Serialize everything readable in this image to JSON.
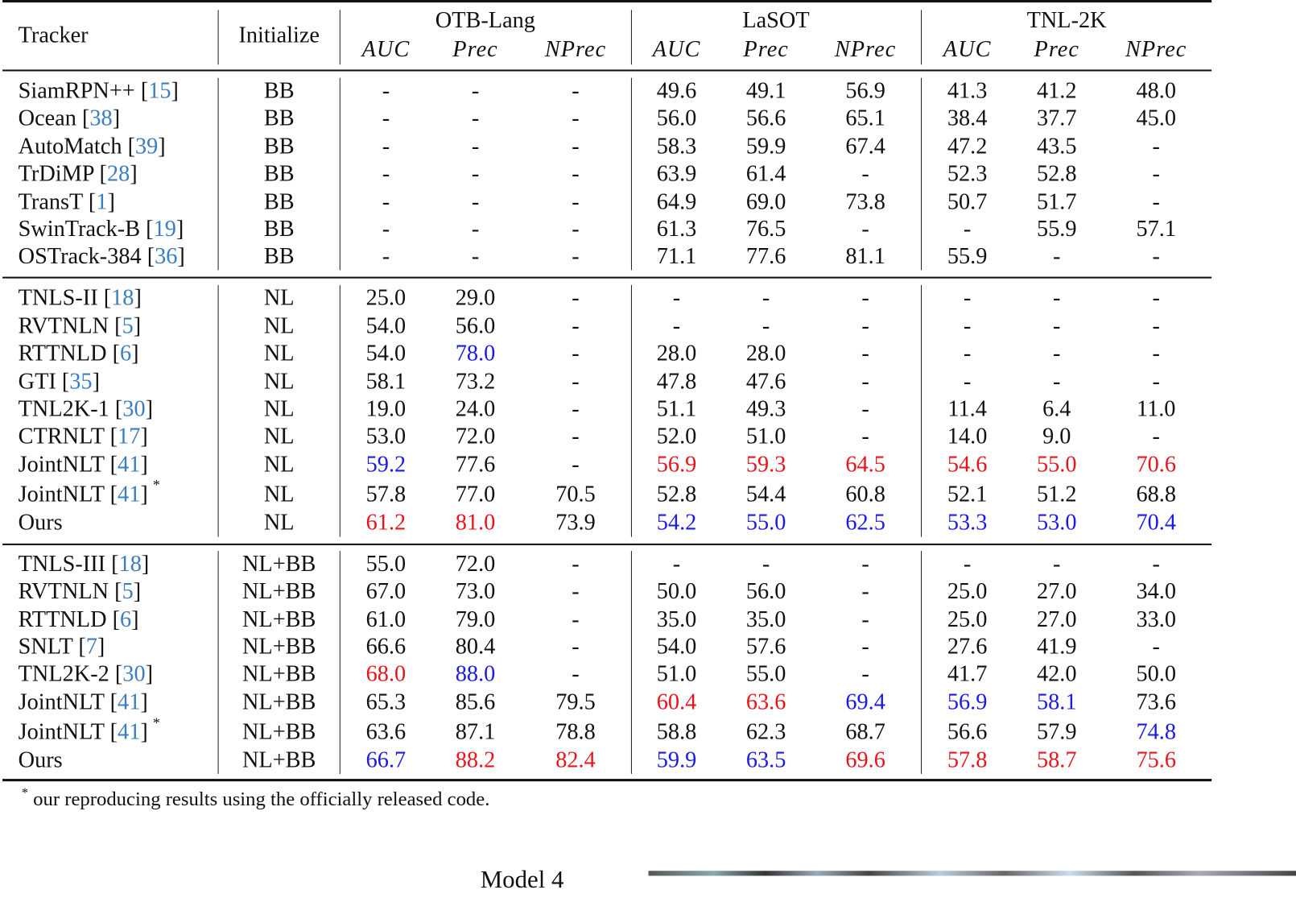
{
  "header": {
    "tracker": "Tracker",
    "initialize": "Initialize",
    "groups": [
      "OTB-Lang",
      "LaSOT",
      "TNL-2K"
    ],
    "metrics": [
      "AUC",
      "Prec",
      "NPrec"
    ]
  },
  "colors": {
    "r": "#e8141b",
    "b": "#1a1ae6",
    "cite": "#3a7ebf"
  },
  "sections": [
    [
      {
        "name": "SiamRPN++",
        "cite": "15",
        "init": "BB",
        "vals": [
          "-",
          "-",
          "-",
          "49.6",
          "49.1",
          "56.9",
          "41.3",
          "41.2",
          "48.0"
        ],
        "hl": [
          "",
          "",
          "",
          "",
          "",
          "",
          "",
          "",
          ""
        ]
      },
      {
        "name": "Ocean",
        "cite": "38",
        "init": "BB",
        "vals": [
          "-",
          "-",
          "-",
          "56.0",
          "56.6",
          "65.1",
          "38.4",
          "37.7",
          "45.0"
        ],
        "hl": [
          "",
          "",
          "",
          "",
          "",
          "",
          "",
          "",
          ""
        ]
      },
      {
        "name": "AutoMatch",
        "cite": "39",
        "init": "BB",
        "vals": [
          "-",
          "-",
          "-",
          "58.3",
          "59.9",
          "67.4",
          "47.2",
          "43.5",
          "-"
        ],
        "hl": [
          "",
          "",
          "",
          "",
          "",
          "",
          "",
          "",
          ""
        ]
      },
      {
        "name": "TrDiMP",
        "cite": "28",
        "init": "BB",
        "vals": [
          "-",
          "-",
          "-",
          "63.9",
          "61.4",
          "-",
          "52.3",
          "52.8",
          "-"
        ],
        "hl": [
          "",
          "",
          "",
          "",
          "",
          "",
          "",
          "",
          ""
        ]
      },
      {
        "name": "TransT",
        "cite": "1",
        "init": "BB",
        "vals": [
          "-",
          "-",
          "-",
          "64.9",
          "69.0",
          "73.8",
          "50.7",
          "51.7",
          "-"
        ],
        "hl": [
          "",
          "",
          "",
          "",
          "",
          "",
          "",
          "",
          ""
        ]
      },
      {
        "name": "SwinTrack-B",
        "cite": "19",
        "init": "BB",
        "vals": [
          "-",
          "-",
          "-",
          "61.3",
          "76.5",
          "-",
          "-",
          "55.9",
          "57.1"
        ],
        "hl": [
          "",
          "",
          "",
          "",
          "",
          "",
          "",
          "",
          ""
        ]
      },
      {
        "name": "OSTrack-384",
        "cite": "36",
        "init": "BB",
        "vals": [
          "-",
          "-",
          "-",
          "71.1",
          "77.6",
          "81.1",
          "55.9",
          "-",
          "-"
        ],
        "hl": [
          "",
          "",
          "",
          "",
          "",
          "",
          "",
          "",
          ""
        ]
      }
    ],
    [
      {
        "name": "TNLS-II",
        "cite": "18",
        "init": "NL",
        "vals": [
          "25.0",
          "29.0",
          "-",
          "-",
          "-",
          "-",
          "-",
          "-",
          "-"
        ],
        "hl": [
          "",
          "",
          "",
          "",
          "",
          "",
          "",
          "",
          ""
        ]
      },
      {
        "name": "RVTNLN",
        "cite": "5",
        "init": "NL",
        "vals": [
          "54.0",
          "56.0",
          "-",
          "-",
          "-",
          "-",
          "-",
          "-",
          "-"
        ],
        "hl": [
          "",
          "",
          "",
          "",
          "",
          "",
          "",
          "",
          ""
        ]
      },
      {
        "name": "RTTNLD",
        "cite": "6",
        "init": "NL",
        "vals": [
          "54.0",
          "78.0",
          "-",
          "28.0",
          "28.0",
          "-",
          "-",
          "-",
          "-"
        ],
        "hl": [
          "",
          "b",
          "",
          "",
          "",
          "",
          "",
          "",
          ""
        ]
      },
      {
        "name": "GTI",
        "cite": "35",
        "init": "NL",
        "vals": [
          "58.1",
          "73.2",
          "-",
          "47.8",
          "47.6",
          "-",
          "-",
          "-",
          "-"
        ],
        "hl": [
          "",
          "",
          "",
          "",
          "",
          "",
          "",
          "",
          ""
        ]
      },
      {
        "name": "TNL2K-1",
        "cite": "30",
        "init": "NL",
        "vals": [
          "19.0",
          "24.0",
          "-",
          "51.1",
          "49.3",
          "-",
          "11.4",
          "6.4",
          "11.0"
        ],
        "hl": [
          "",
          "",
          "",
          "",
          "",
          "",
          "",
          "",
          ""
        ]
      },
      {
        "name": "CTRNLT",
        "cite": "17",
        "init": "NL",
        "vals": [
          "53.0",
          "72.0",
          "-",
          "52.0",
          "51.0",
          "-",
          "14.0",
          "9.0",
          "-"
        ],
        "hl": [
          "",
          "",
          "",
          "",
          "",
          "",
          "",
          "",
          ""
        ]
      },
      {
        "name": "JointNLT",
        "cite": "41",
        "init": "NL",
        "vals": [
          "59.2",
          "77.6",
          "-",
          "56.9",
          "59.3",
          "64.5",
          "54.6",
          "55.0",
          "70.6"
        ],
        "hl": [
          "b",
          "",
          "",
          "r",
          "r",
          "r",
          "r",
          "r",
          "r"
        ]
      },
      {
        "name": "JointNLT",
        "cite": "41",
        "star": "*",
        "init": "NL",
        "vals": [
          "57.8",
          "77.0",
          "70.5",
          "52.8",
          "54.4",
          "60.8",
          "52.1",
          "51.2",
          "68.8"
        ],
        "hl": [
          "",
          "",
          "",
          "",
          "",
          "",
          "",
          "",
          ""
        ]
      },
      {
        "name": "Ours",
        "init": "NL",
        "vals": [
          "61.2",
          "81.0",
          "73.9",
          "54.2",
          "55.0",
          "62.5",
          "53.3",
          "53.0",
          "70.4"
        ],
        "hl": [
          "r",
          "r",
          "",
          "b",
          "b",
          "b",
          "b",
          "b",
          "b"
        ]
      }
    ],
    [
      {
        "name": "TNLS-III",
        "cite": "18",
        "init": "NL+BB",
        "vals": [
          "55.0",
          "72.0",
          "-",
          "-",
          "-",
          "-",
          "-",
          "-",
          "-"
        ],
        "hl": [
          "",
          "",
          "",
          "",
          "",
          "",
          "",
          "",
          ""
        ]
      },
      {
        "name": "RVTNLN",
        "cite": "5",
        "init": "NL+BB",
        "vals": [
          "67.0",
          "73.0",
          "-",
          "50.0",
          "56.0",
          "-",
          "25.0",
          "27.0",
          "34.0"
        ],
        "hl": [
          "",
          "",
          "",
          "",
          "",
          "",
          "",
          "",
          ""
        ]
      },
      {
        "name": "RTTNLD",
        "cite": "6",
        "init": "NL+BB",
        "vals": [
          "61.0",
          "79.0",
          "-",
          "35.0",
          "35.0",
          "-",
          "25.0",
          "27.0",
          "33.0"
        ],
        "hl": [
          "",
          "",
          "",
          "",
          "",
          "",
          "",
          "",
          ""
        ]
      },
      {
        "name": "SNLT",
        "cite": "7",
        "init": "NL+BB",
        "vals": [
          "66.6",
          "80.4",
          "-",
          "54.0",
          "57.6",
          "-",
          "27.6",
          "41.9",
          "-"
        ],
        "hl": [
          "",
          "",
          "",
          "",
          "",
          "",
          "",
          "",
          ""
        ]
      },
      {
        "name": "TNL2K-2",
        "cite": "30",
        "init": "NL+BB",
        "vals": [
          "68.0",
          "88.0",
          "-",
          "51.0",
          "55.0",
          "-",
          "41.7",
          "42.0",
          "50.0"
        ],
        "hl": [
          "r",
          "b",
          "",
          "",
          "",
          "",
          "",
          "",
          ""
        ]
      },
      {
        "name": "JointNLT",
        "cite": "41",
        "init": "NL+BB",
        "vals": [
          "65.3",
          "85.6",
          "79.5",
          "60.4",
          "63.6",
          "69.4",
          "56.9",
          "58.1",
          "73.6"
        ],
        "hl": [
          "",
          "",
          "",
          "r",
          "r",
          "b",
          "b",
          "b",
          ""
        ]
      },
      {
        "name": "JointNLT",
        "cite": "41",
        "star": "*",
        "init": "NL+BB",
        "vals": [
          "63.6",
          "87.1",
          "78.8",
          "58.8",
          "62.3",
          "68.7",
          "56.6",
          "57.9",
          "74.8"
        ],
        "hl": [
          "",
          "",
          "",
          "",
          "",
          "",
          "",
          "",
          "b"
        ]
      },
      {
        "name": "Ours",
        "init": "NL+BB",
        "vals": [
          "66.7",
          "88.2",
          "82.4",
          "59.9",
          "63.5",
          "69.6",
          "57.8",
          "58.7",
          "75.6"
        ],
        "hl": [
          "b",
          "r",
          "r",
          "b",
          "b",
          "r",
          "r",
          "r",
          "r"
        ]
      }
    ]
  ],
  "footnote": {
    "mark": "*",
    "text": "our reproducing results using the officially released code."
  },
  "cutoff_text": "Model 4"
}
